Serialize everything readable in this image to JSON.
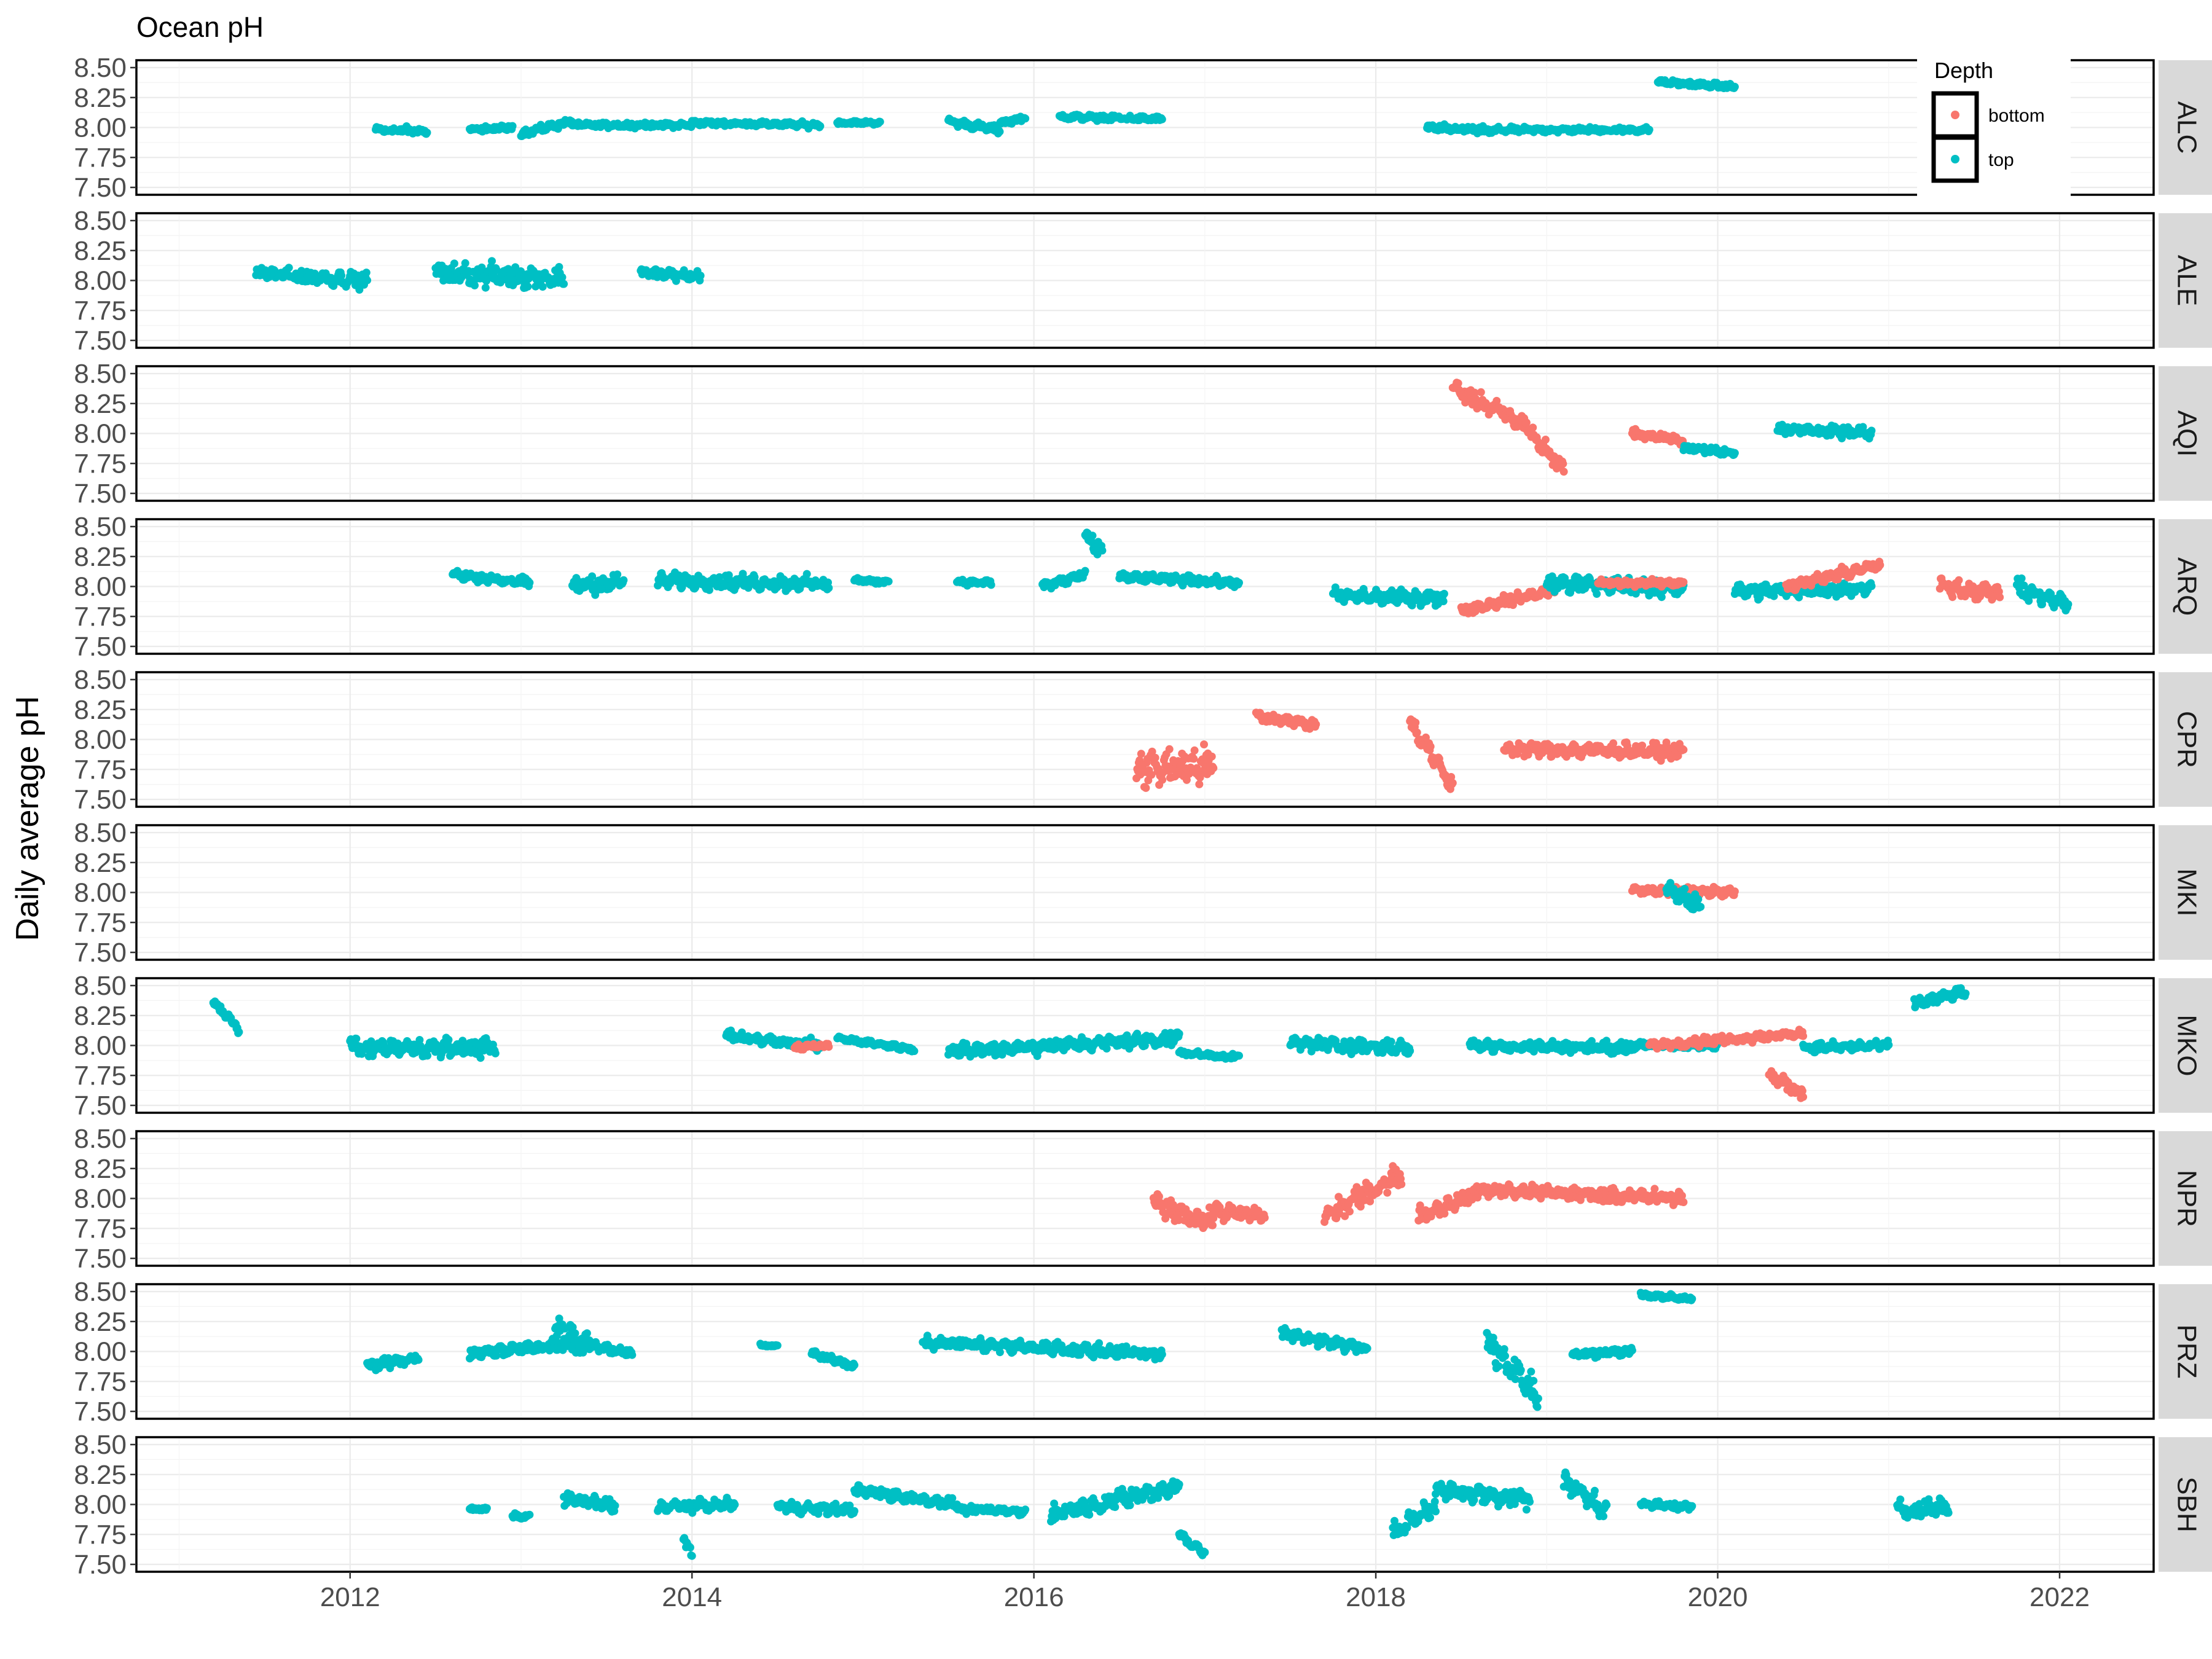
{
  "chart_data": {
    "type": "scatter",
    "title": "Ocean pH",
    "xlabel": "",
    "ylabel": "Daily average pH",
    "xlim": [
      2010.75,
      2022.55
    ],
    "ylim": [
      7.5,
      8.5
    ],
    "x_ticks": [
      2012,
      2014,
      2016,
      2018,
      2020,
      2022
    ],
    "y_ticks": [
      7.5,
      7.75,
      8.0,
      8.25,
      8.5
    ],
    "y_tick_labels": [
      "7.50",
      "7.75",
      "8.00",
      "8.25",
      "8.50"
    ],
    "grid": true,
    "legend": {
      "title": "Depth",
      "position": "top-right",
      "entries": [
        {
          "label": "bottom",
          "color": "#F8766D"
        },
        {
          "label": "top",
          "color": "#00BFC4"
        }
      ]
    },
    "panels": [
      {
        "name": "ALC",
        "segments": [
          {
            "depth": "top",
            "x0": 2012.15,
            "x1": 2012.45,
            "y": [
              7.98,
              7.97
            ],
            "spread": 0.04
          },
          {
            "depth": "top",
            "x0": 2012.7,
            "x1": 2012.95,
            "y": [
              7.98,
              8.0
            ],
            "spread": 0.03
          },
          {
            "depth": "top",
            "x0": 2013.0,
            "x1": 2013.3,
            "y": [
              7.95,
              8.05
            ],
            "spread": 0.04
          },
          {
            "depth": "top",
            "x0": 2013.3,
            "x1": 2014.0,
            "y": [
              8.02,
              8.02
            ],
            "spread": 0.03
          },
          {
            "depth": "top",
            "x0": 2014.0,
            "x1": 2014.75,
            "y": [
              8.04,
              8.02
            ],
            "spread": 0.03
          },
          {
            "depth": "top",
            "x0": 2014.85,
            "x1": 2015.1,
            "y": [
              8.04,
              8.04
            ],
            "spread": 0.02
          },
          {
            "depth": "top",
            "x0": 2015.5,
            "x1": 2015.8,
            "y": [
              8.05,
              7.98
            ],
            "spread": 0.04
          },
          {
            "depth": "top",
            "x0": 2015.8,
            "x1": 2015.95,
            "y": [
              8.04,
              8.08
            ],
            "spread": 0.03
          },
          {
            "depth": "top",
            "x0": 2016.15,
            "x1": 2016.75,
            "y": [
              8.09,
              8.07
            ],
            "spread": 0.03
          },
          {
            "depth": "top",
            "x0": 2018.3,
            "x1": 2018.7,
            "y": [
              8.0,
              7.97
            ],
            "spread": 0.04
          },
          {
            "depth": "top",
            "x0": 2018.7,
            "x1": 2019.6,
            "y": [
              7.98,
              7.98
            ],
            "spread": 0.03
          },
          {
            "depth": "top",
            "x0": 2019.65,
            "x1": 2020.1,
            "y": [
              8.38,
              8.34
            ],
            "spread": 0.03
          }
        ]
      },
      {
        "name": "ALE",
        "segments": [
          {
            "depth": "top",
            "x0": 2011.45,
            "x1": 2012.1,
            "y": [
              8.06,
              8.0
            ],
            "spread": 0.08
          },
          {
            "depth": "top",
            "x0": 2012.5,
            "x1": 2013.25,
            "y": [
              8.06,
              8.02
            ],
            "spread": 0.12
          },
          {
            "depth": "top",
            "x0": 2013.7,
            "x1": 2014.05,
            "y": [
              8.07,
              8.03
            ],
            "spread": 0.06
          }
        ]
      },
      {
        "name": "AQI",
        "segments": [
          {
            "depth": "bottom",
            "x0": 2018.45,
            "x1": 2018.9,
            "y": [
              8.38,
              8.05
            ],
            "spread": 0.1
          },
          {
            "depth": "bottom",
            "x0": 2018.9,
            "x1": 2019.1,
            "y": [
              8.0,
              7.7
            ],
            "spread": 0.1
          },
          {
            "depth": "bottom",
            "x0": 2019.5,
            "x1": 2019.8,
            "y": [
              8.0,
              7.94
            ],
            "spread": 0.05
          },
          {
            "depth": "top",
            "x0": 2019.8,
            "x1": 2020.1,
            "y": [
              7.88,
              7.84
            ],
            "spread": 0.04
          },
          {
            "depth": "top",
            "x0": 2020.35,
            "x1": 2020.9,
            "y": [
              8.04,
              8.0
            ],
            "spread": 0.06
          }
        ]
      },
      {
        "name": "ARQ",
        "segments": [
          {
            "depth": "top",
            "x0": 2012.6,
            "x1": 2013.05,
            "y": [
              8.1,
              8.03
            ],
            "spread": 0.05
          },
          {
            "depth": "top",
            "x0": 2013.3,
            "x1": 2013.6,
            "y": [
              8.0,
              8.04
            ],
            "spread": 0.1
          },
          {
            "depth": "top",
            "x0": 2013.8,
            "x1": 2014.8,
            "y": [
              8.05,
              8.02
            ],
            "spread": 0.08
          },
          {
            "depth": "top",
            "x0": 2014.95,
            "x1": 2015.15,
            "y": [
              8.05,
              8.04
            ],
            "spread": 0.03
          },
          {
            "depth": "top",
            "x0": 2015.55,
            "x1": 2015.75,
            "y": [
              8.04,
              8.03
            ],
            "spread": 0.03
          },
          {
            "depth": "top",
            "x0": 2016.05,
            "x1": 2016.3,
            "y": [
              8.0,
              8.1
            ],
            "spread": 0.06
          },
          {
            "depth": "top",
            "x0": 2016.3,
            "x1": 2016.4,
            "y": [
              8.4,
              8.3
            ],
            "spread": 0.1
          },
          {
            "depth": "top",
            "x0": 2016.5,
            "x1": 2017.2,
            "y": [
              8.08,
              8.03
            ],
            "spread": 0.05
          },
          {
            "depth": "top",
            "x0": 2017.75,
            "x1": 2018.4,
            "y": [
              7.92,
              7.9
            ],
            "spread": 0.08
          },
          {
            "depth": "bottom",
            "x0": 2018.5,
            "x1": 2019.05,
            "y": [
              7.8,
              7.97
            ],
            "spread": 0.06
          },
          {
            "depth": "top",
            "x0": 2019.0,
            "x1": 2019.8,
            "y": [
              8.03,
              7.98
            ],
            "spread": 0.09
          },
          {
            "depth": "bottom",
            "x0": 2019.3,
            "x1": 2019.8,
            "y": [
              8.03,
              8.03
            ],
            "spread": 0.04
          },
          {
            "depth": "top",
            "x0": 2020.1,
            "x1": 2020.9,
            "y": [
              7.96,
              7.98
            ],
            "spread": 0.08
          },
          {
            "depth": "bottom",
            "x0": 2020.4,
            "x1": 2020.95,
            "y": [
              8.0,
              8.18
            ],
            "spread": 0.06
          },
          {
            "depth": "bottom",
            "x0": 2021.3,
            "x1": 2021.65,
            "y": [
              8.0,
              7.95
            ],
            "spread": 0.1
          },
          {
            "depth": "top",
            "x0": 2021.75,
            "x1": 2022.05,
            "y": [
              7.98,
              7.85
            ],
            "spread": 0.1
          }
        ]
      },
      {
        "name": "CPR",
        "segments": [
          {
            "depth": "bottom",
            "x0": 2016.6,
            "x1": 2017.05,
            "y": [
              7.75,
              7.8
            ],
            "spread": 0.22
          },
          {
            "depth": "bottom",
            "x0": 2017.3,
            "x1": 2017.65,
            "y": [
              8.2,
              8.12
            ],
            "spread": 0.06
          },
          {
            "depth": "bottom",
            "x0": 2018.2,
            "x1": 2018.45,
            "y": [
              8.15,
              7.6
            ],
            "spread": 0.1
          },
          {
            "depth": "bottom",
            "x0": 2018.75,
            "x1": 2019.8,
            "y": [
              7.92,
              7.9
            ],
            "spread": 0.08
          }
        ]
      },
      {
        "name": "MKI",
        "segments": [
          {
            "depth": "bottom",
            "x0": 2019.5,
            "x1": 2020.1,
            "y": [
              8.02,
              8.0
            ],
            "spread": 0.05
          },
          {
            "depth": "top",
            "x0": 2019.7,
            "x1": 2019.9,
            "y": [
              8.02,
              7.9
            ],
            "spread": 0.1
          }
        ]
      },
      {
        "name": "MKO",
        "segments": [
          {
            "depth": "top",
            "x0": 2011.2,
            "x1": 2011.35,
            "y": [
              8.35,
              8.15
            ],
            "spread": 0.06
          },
          {
            "depth": "top",
            "x0": 2012.0,
            "x1": 2012.85,
            "y": [
              7.98,
              7.98
            ],
            "spread": 0.1
          },
          {
            "depth": "top",
            "x0": 2014.2,
            "x1": 2014.75,
            "y": [
              8.08,
              8.0
            ],
            "spread": 0.06
          },
          {
            "depth": "bottom",
            "x0": 2014.6,
            "x1": 2014.8,
            "y": [
              7.98,
              8.0
            ],
            "spread": 0.03
          },
          {
            "depth": "top",
            "x0": 2014.85,
            "x1": 2015.3,
            "y": [
              8.06,
              7.97
            ],
            "spread": 0.03
          },
          {
            "depth": "top",
            "x0": 2015.5,
            "x1": 2016.85,
            "y": [
              7.95,
              8.06
            ],
            "spread": 0.08
          },
          {
            "depth": "top",
            "x0": 2016.85,
            "x1": 2017.2,
            "y": [
              7.94,
              7.9
            ],
            "spread": 0.03
          },
          {
            "depth": "top",
            "x0": 2017.5,
            "x1": 2018.2,
            "y": [
              8.02,
              7.98
            ],
            "spread": 0.08
          },
          {
            "depth": "top",
            "x0": 2018.55,
            "x1": 2019.5,
            "y": [
              8.0,
              7.98
            ],
            "spread": 0.06
          },
          {
            "depth": "top",
            "x0": 2019.45,
            "x1": 2020.0,
            "y": [
              8.0,
              8.0
            ],
            "spread": 0.04
          },
          {
            "depth": "bottom",
            "x0": 2019.6,
            "x1": 2020.5,
            "y": [
              8.0,
              8.1
            ],
            "spread": 0.05
          },
          {
            "depth": "bottom",
            "x0": 2020.3,
            "x1": 2020.5,
            "y": [
              7.75,
              7.6
            ],
            "spread": 0.08
          },
          {
            "depth": "top",
            "x0": 2020.5,
            "x1": 2021.0,
            "y": [
              7.98,
              8.0
            ],
            "spread": 0.05
          },
          {
            "depth": "top",
            "x0": 2021.15,
            "x1": 2021.45,
            "y": [
              8.35,
              8.45
            ],
            "spread": 0.06
          }
        ]
      },
      {
        "name": "NPR",
        "segments": [
          {
            "depth": "bottom",
            "x0": 2016.7,
            "x1": 2017.05,
            "y": [
              7.95,
              7.8
            ],
            "spread": 0.12
          },
          {
            "depth": "bottom",
            "x0": 2017.05,
            "x1": 2017.35,
            "y": [
              7.9,
              7.85
            ],
            "spread": 0.08
          },
          {
            "depth": "bottom",
            "x0": 2017.7,
            "x1": 2018.15,
            "y": [
              7.85,
              8.2
            ],
            "spread": 0.12
          },
          {
            "depth": "bottom",
            "x0": 2018.25,
            "x1": 2018.6,
            "y": [
              7.85,
              8.05
            ],
            "spread": 0.1
          },
          {
            "depth": "bottom",
            "x0": 2018.6,
            "x1": 2019.8,
            "y": [
              8.07,
              8.0
            ],
            "spread": 0.08
          }
        ]
      },
      {
        "name": "PRZ",
        "segments": [
          {
            "depth": "top",
            "x0": 2012.1,
            "x1": 2012.4,
            "y": [
              7.88,
              7.95
            ],
            "spread": 0.06
          },
          {
            "depth": "top",
            "x0": 2012.7,
            "x1": 2013.4,
            "y": [
              7.98,
              8.08
            ],
            "spread": 0.07
          },
          {
            "depth": "top",
            "x0": 2013.2,
            "x1": 2013.4,
            "y": [
              8.2,
              8.05
            ],
            "spread": 0.15
          },
          {
            "depth": "top",
            "x0": 2013.4,
            "x1": 2013.65,
            "y": [
              8.05,
              7.98
            ],
            "spread": 0.05
          },
          {
            "depth": "top",
            "x0": 2014.4,
            "x1": 2014.5,
            "y": [
              8.05,
              8.05
            ],
            "spread": 0.02
          },
          {
            "depth": "top",
            "x0": 2014.7,
            "x1": 2014.95,
            "y": [
              7.98,
              7.88
            ],
            "spread": 0.04
          },
          {
            "depth": "top",
            "x0": 2015.35,
            "x1": 2016.75,
            "y": [
              8.08,
              7.98
            ],
            "spread": 0.07
          },
          {
            "depth": "top",
            "x0": 2017.45,
            "x1": 2017.95,
            "y": [
              8.15,
              8.02
            ],
            "spread": 0.06
          },
          {
            "depth": "top",
            "x0": 2018.65,
            "x1": 2018.95,
            "y": [
              8.1,
              7.6
            ],
            "spread": 0.2
          },
          {
            "depth": "top",
            "x0": 2019.15,
            "x1": 2019.5,
            "y": [
              7.98,
              8.0
            ],
            "spread": 0.04
          },
          {
            "depth": "top",
            "x0": 2019.55,
            "x1": 2019.85,
            "y": [
              8.47,
              8.44
            ],
            "spread": 0.03
          }
        ]
      },
      {
        "name": "SBH",
        "segments": [
          {
            "depth": "top",
            "x0": 2012.7,
            "x1": 2012.8,
            "y": [
              7.96,
              7.96
            ],
            "spread": 0.02
          },
          {
            "depth": "top",
            "x0": 2012.95,
            "x1": 2013.05,
            "y": [
              7.9,
              7.9
            ],
            "spread": 0.03
          },
          {
            "depth": "top",
            "x0": 2013.25,
            "x1": 2013.55,
            "y": [
              8.05,
              7.98
            ],
            "spread": 0.08
          },
          {
            "depth": "top",
            "x0": 2013.8,
            "x1": 2014.25,
            "y": [
              7.98,
              8.0
            ],
            "spread": 0.06
          },
          {
            "depth": "top",
            "x0": 2013.95,
            "x1": 2014.0,
            "y": [
              7.7,
              7.6
            ],
            "spread": 0.06
          },
          {
            "depth": "top",
            "x0": 2014.5,
            "x1": 2014.95,
            "y": [
              7.98,
              7.95
            ],
            "spread": 0.06
          },
          {
            "depth": "top",
            "x0": 2014.95,
            "x1": 2015.55,
            "y": [
              8.12,
              8.0
            ],
            "spread": 0.06
          },
          {
            "depth": "top",
            "x0": 2015.55,
            "x1": 2015.95,
            "y": [
              7.96,
              7.94
            ],
            "spread": 0.04
          },
          {
            "depth": "top",
            "x0": 2016.1,
            "x1": 2016.85,
            "y": [
              7.92,
              8.15
            ],
            "spread": 0.1
          },
          {
            "depth": "top",
            "x0": 2016.85,
            "x1": 2017.0,
            "y": [
              7.75,
              7.6
            ],
            "spread": 0.06
          },
          {
            "depth": "top",
            "x0": 2018.1,
            "x1": 2018.35,
            "y": [
              7.75,
              8.0
            ],
            "spread": 0.12
          },
          {
            "depth": "top",
            "x0": 2018.35,
            "x1": 2018.9,
            "y": [
              8.12,
              8.05
            ],
            "spread": 0.1
          },
          {
            "depth": "top",
            "x0": 2019.1,
            "x1": 2019.35,
            "y": [
              8.2,
              7.95
            ],
            "spread": 0.12
          },
          {
            "depth": "top",
            "x0": 2019.55,
            "x1": 2019.85,
            "y": [
              8.0,
              7.98
            ],
            "spread": 0.04
          },
          {
            "depth": "top",
            "x0": 2021.05,
            "x1": 2021.35,
            "y": [
              7.95,
              7.98
            ],
            "spread": 0.1
          }
        ]
      }
    ]
  }
}
